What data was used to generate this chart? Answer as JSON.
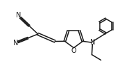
{
  "bg_color": "#ffffff",
  "line_color": "#1a1a1a",
  "line_width": 1.1,
  "font_size": 7.0,
  "figsize": [
    1.76,
    1.05
  ],
  "dpi": 100,
  "xlim": [
    0,
    10
  ],
  "ylim": [
    0,
    6
  ]
}
